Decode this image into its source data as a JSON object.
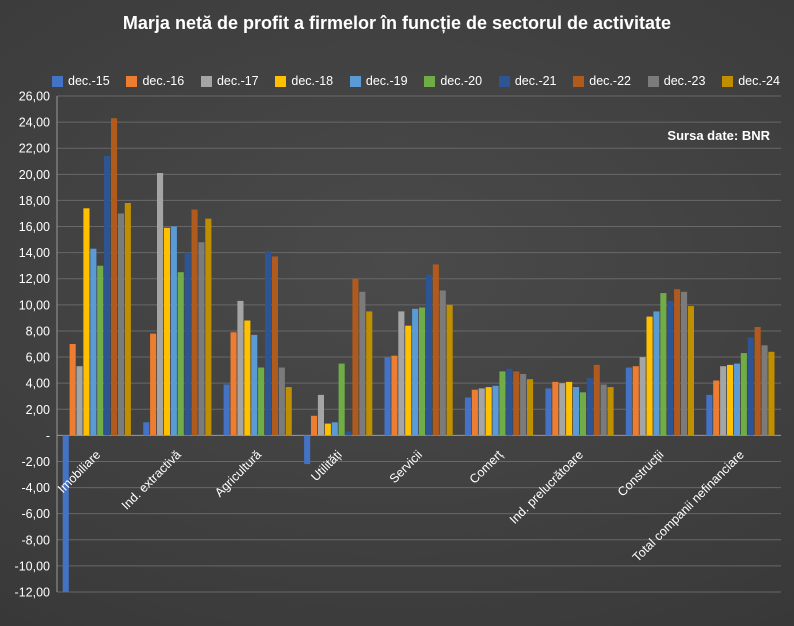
{
  "title": "Marja netă de profit a firmelor în funcție de sectorul de activitate",
  "source_label": "Sursa date: BNR",
  "chart_data": {
    "type": "bar",
    "title": "Marja netă de profit a firmelor în funcție de sectorul de activitate",
    "source": "Sursa date: BNR",
    "legend_position": "top",
    "grid": true,
    "background": "#3c3c3c",
    "ylim": [
      -12,
      26
    ],
    "y_axis": {
      "min": -12,
      "max": 26,
      "step": 2,
      "zero_label": "-",
      "decimal_separator": ",",
      "number_format": "0,00"
    },
    "categories": [
      "Imobiliare",
      "Ind. extractivă",
      "Agricultură",
      "Utilități",
      "Servicii",
      "Comerț",
      "Ind. prelucrătoare",
      "Construcții",
      "Total companii nefinanciare"
    ],
    "series": [
      {
        "name": "dec.-15",
        "color": "#4472C4",
        "values": [
          -12.0,
          1.0,
          3.9,
          -2.2,
          6.0,
          2.9,
          3.6,
          5.2,
          3.1
        ]
      },
      {
        "name": "dec.-16",
        "color": "#ED7D31",
        "values": [
          7.0,
          7.8,
          7.9,
          1.5,
          6.1,
          3.5,
          4.1,
          5.3,
          4.2
        ]
      },
      {
        "name": "dec.-17",
        "color": "#A5A5A5",
        "values": [
          5.3,
          20.1,
          10.3,
          3.1,
          9.5,
          3.6,
          4.0,
          6.0,
          5.3
        ]
      },
      {
        "name": "dec.-18",
        "color": "#FFC000",
        "values": [
          17.4,
          15.9,
          8.8,
          0.9,
          8.4,
          3.7,
          4.1,
          9.1,
          5.4
        ]
      },
      {
        "name": "dec.-19",
        "color": "#5B9BD5",
        "values": [
          14.3,
          16.0,
          7.7,
          1.0,
          9.7,
          3.8,
          3.7,
          9.5,
          5.5
        ]
      },
      {
        "name": "dec.-20",
        "color": "#70AD47",
        "values": [
          13.0,
          12.5,
          5.2,
          5.5,
          9.8,
          4.9,
          3.3,
          10.9,
          6.3
        ]
      },
      {
        "name": "dec.-21",
        "color": "#2E5593",
        "values": [
          21.4,
          14.0,
          14.1,
          0.3,
          12.3,
          5.1,
          4.4,
          10.3,
          7.5
        ]
      },
      {
        "name": "dec.-22",
        "color": "#B05A1E",
        "values": [
          24.3,
          17.3,
          13.7,
          12.0,
          13.1,
          4.9,
          5.4,
          11.2,
          8.3
        ]
      },
      {
        "name": "dec.-23",
        "color": "#7B7B7B",
        "values": [
          17.0,
          14.8,
          5.2,
          11.0,
          11.1,
          4.7,
          3.9,
          11.0,
          6.9
        ]
      },
      {
        "name": "dec.-24",
        "color": "#BF8F00",
        "values": [
          17.8,
          16.6,
          3.7,
          9.5,
          10.0,
          4.3,
          3.7,
          9.9,
          6.4
        ]
      }
    ]
  }
}
